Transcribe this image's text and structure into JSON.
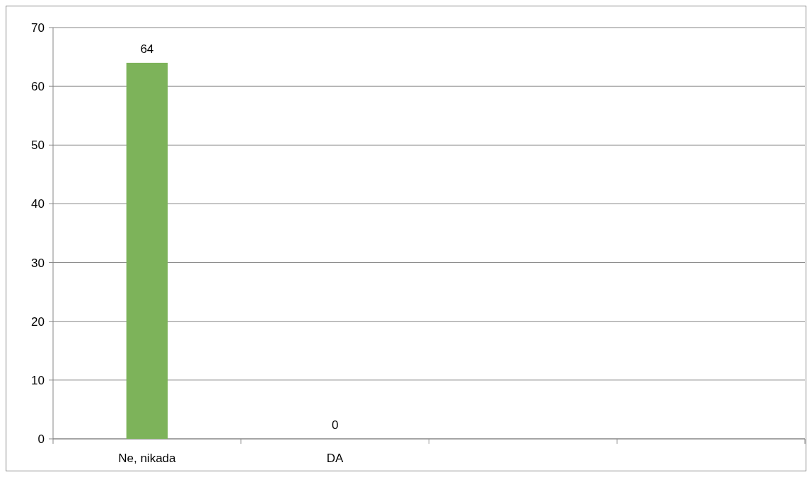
{
  "chart_data": {
    "type": "bar",
    "categories": [
      "Ne, nikada",
      "DA",
      null,
      null
    ],
    "values": [
      64,
      0,
      null,
      null
    ],
    "color": "#7db35a",
    "ylim": [
      0,
      70
    ],
    "yticks": [
      0,
      10,
      20,
      30,
      40,
      50,
      60,
      70
    ],
    "grid": "y",
    "data_labels": true
  }
}
